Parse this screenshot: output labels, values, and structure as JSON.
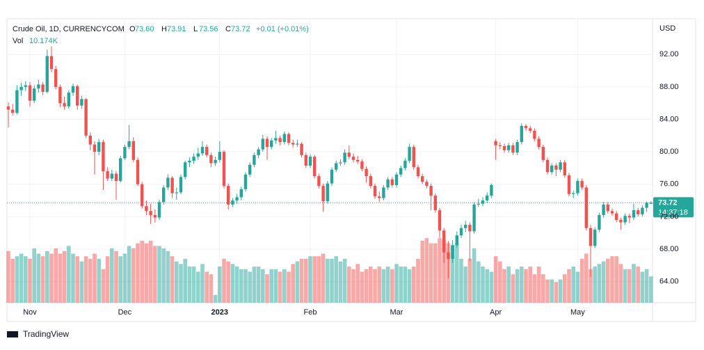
{
  "chart_data": {
    "type": "candlestick",
    "instrument": "Crude Oil, 1D, CURRENCYCOM",
    "currency": "USD",
    "ohlc_letters": [
      "O",
      "H",
      "L",
      "C"
    ],
    "ohlc_labels": [
      "73.60",
      "73.91",
      "73.56",
      "73.72"
    ],
    "change_label": "+0.01 (+0.01%)",
    "volume_title": "Vol",
    "volume_label": "10.174K",
    "last_price_label": "73.72",
    "countdown": "14:37:18",
    "brand": "TradingView",
    "up_color": "#26a69a",
    "down_color": "#ef5350",
    "ylim": [
      61.4,
      96.4
    ],
    "yticks": [
      {
        "value": 64,
        "label": "64.00"
      },
      {
        "value": 68,
        "label": "68.00"
      },
      {
        "value": 72,
        "label": "72.00"
      },
      {
        "value": 76,
        "label": "76.00"
      },
      {
        "value": 80,
        "label": "80.00"
      },
      {
        "value": 84,
        "label": "84.00"
      },
      {
        "value": 88,
        "label": "88.00"
      },
      {
        "value": 92,
        "label": "92.00"
      }
    ],
    "volume_lim": [
      0,
      31
    ],
    "grid": true,
    "categories": [
      null,
      null,
      null,
      null,
      null,
      "Nov",
      null,
      null,
      null,
      null,
      null,
      null,
      null,
      null,
      null,
      null,
      null,
      null,
      null,
      null,
      null,
      null,
      null,
      null,
      null,
      null,
      null,
      "Dec",
      null,
      null,
      null,
      null,
      null,
      null,
      null,
      null,
      null,
      null,
      null,
      null,
      null,
      null,
      null,
      null,
      null,
      null,
      null,
      null,
      null,
      "2023",
      null,
      null,
      null,
      null,
      null,
      null,
      null,
      null,
      null,
      null,
      null,
      null,
      null,
      null,
      null,
      null,
      null,
      null,
      null,
      null,
      "Feb",
      null,
      null,
      null,
      null,
      null,
      null,
      null,
      null,
      null,
      null,
      null,
      null,
      null,
      null,
      null,
      null,
      null,
      null,
      null,
      "Mar",
      null,
      null,
      null,
      null,
      null,
      null,
      null,
      null,
      null,
      null,
      null,
      null,
      null,
      null,
      null,
      null,
      null,
      null,
      null,
      null,
      null,
      null,
      "Apr",
      null,
      null,
      null,
      null,
      null,
      null,
      null,
      null,
      null,
      null,
      null,
      null,
      null,
      null,
      null,
      null,
      null,
      null,
      "May",
      null,
      null,
      null,
      null,
      null,
      null,
      null,
      null,
      null,
      null,
      null,
      null,
      null,
      null,
      null,
      null,
      null
    ],
    "candles": [
      [
        85.6,
        86.1,
        83.0,
        85.2
      ],
      [
        85.2,
        85.9,
        84.5,
        84.8
      ],
      [
        84.8,
        88.2,
        84.6,
        87.6
      ],
      [
        87.6,
        88.5,
        86.9,
        88.0
      ],
      [
        88.0,
        88.7,
        87.5,
        88.2
      ],
      [
        88.2,
        88.6,
        85.6,
        86.3
      ],
      [
        86.3,
        88.2,
        86.0,
        87.8
      ],
      [
        87.8,
        88.9,
        87.3,
        88.3
      ],
      [
        88.3,
        88.6,
        87.0,
        87.4
      ],
      [
        87.4,
        92.6,
        87.2,
        91.8
      ],
      [
        91.8,
        93.0,
        89.8,
        90.2
      ],
      [
        90.2,
        90.6,
        87.7,
        88.0
      ],
      [
        88.0,
        88.3,
        85.5,
        86.0
      ],
      [
        86.0,
        86.8,
        85.2,
        85.6
      ],
      [
        85.6,
        87.6,
        85.3,
        87.3
      ],
      [
        87.3,
        88.4,
        86.9,
        88.1
      ],
      [
        88.1,
        88.3,
        85.2,
        85.7
      ],
      [
        85.7,
        86.9,
        85.3,
        86.5
      ],
      [
        86.5,
        86.6,
        81.7,
        82.0
      ],
      [
        82.0,
        82.4,
        80.2,
        80.9
      ],
      [
        80.9,
        81.3,
        77.2,
        80.0
      ],
      [
        80.0,
        81.6,
        79.6,
        81.2
      ],
      [
        81.2,
        81.5,
        75.3,
        77.6
      ],
      [
        77.6,
        78.1,
        76.4,
        76.7
      ],
      [
        76.7,
        77.8,
        76.4,
        77.3
      ],
      [
        77.3,
        77.6,
        74.1,
        76.4
      ],
      [
        76.4,
        79.5,
        76.2,
        79.2
      ],
      [
        79.2,
        80.9,
        79.0,
        80.6
      ],
      [
        80.6,
        83.3,
        80.3,
        81.3
      ],
      [
        81.3,
        81.8,
        78.7,
        79.0
      ],
      [
        79.0,
        79.3,
        75.8,
        76.0
      ],
      [
        76.0,
        76.3,
        73.0,
        73.3
      ],
      [
        73.3,
        74.0,
        72.2,
        72.7
      ],
      [
        72.7,
        73.6,
        71.1,
        72.2
      ],
      [
        72.2,
        72.9,
        71.3,
        71.9
      ],
      [
        71.9,
        74.1,
        71.6,
        73.8
      ],
      [
        73.8,
        75.9,
        73.5,
        75.6
      ],
      [
        75.6,
        77.2,
        75.3,
        76.8
      ],
      [
        76.8,
        77.0,
        74.3,
        74.9
      ],
      [
        74.9,
        75.6,
        74.1,
        75.0
      ],
      [
        75.0,
        77.2,
        74.8,
        76.9
      ],
      [
        76.9,
        78.9,
        76.6,
        78.7
      ],
      [
        78.7,
        79.3,
        78.1,
        78.9
      ],
      [
        78.9,
        79.8,
        78.5,
        79.4
      ],
      [
        79.4,
        80.5,
        79.0,
        79.8
      ],
      [
        79.8,
        81.3,
        79.5,
        80.6
      ],
      [
        80.6,
        80.9,
        79.3,
        79.6
      ],
      [
        79.6,
        79.9,
        78.1,
        78.6
      ],
      [
        78.6,
        79.4,
        78.3,
        79.0
      ],
      [
        79.0,
        81.3,
        78.7,
        80.0
      ],
      [
        80.0,
        80.2,
        75.5,
        75.8
      ],
      [
        75.8,
        76.1,
        72.9,
        73.5
      ],
      [
        73.5,
        74.3,
        73.2,
        74.0
      ],
      [
        74.0,
        74.8,
        73.6,
        74.4
      ],
      [
        74.4,
        75.7,
        74.0,
        75.4
      ],
      [
        75.4,
        77.5,
        75.1,
        77.2
      ],
      [
        77.2,
        78.7,
        76.9,
        78.4
      ],
      [
        78.4,
        79.9,
        78.1,
        79.6
      ],
      [
        79.6,
        80.6,
        79.2,
        80.3
      ],
      [
        80.3,
        82.1,
        80.0,
        81.6
      ],
      [
        81.6,
        81.9,
        79.0,
        80.6
      ],
      [
        80.6,
        81.7,
        80.3,
        81.4
      ],
      [
        81.4,
        82.6,
        81.0,
        81.7
      ],
      [
        81.7,
        82.0,
        80.8,
        81.2
      ],
      [
        81.2,
        82.5,
        80.9,
        82.2
      ],
      [
        82.2,
        82.4,
        80.8,
        81.1
      ],
      [
        81.1,
        81.5,
        80.5,
        80.9
      ],
      [
        80.9,
        81.5,
        80.6,
        81.0
      ],
      [
        81.0,
        81.2,
        79.3,
        79.6
      ],
      [
        79.6,
        79.9,
        78.0,
        78.3
      ],
      [
        78.3,
        79.7,
        78.0,
        79.4
      ],
      [
        79.4,
        79.6,
        76.7,
        77.0
      ],
      [
        77.0,
        77.3,
        75.5,
        75.8
      ],
      [
        75.8,
        76.1,
        72.6,
        73.9
      ],
      [
        73.9,
        76.4,
        73.6,
        76.1
      ],
      [
        76.1,
        78.1,
        75.8,
        77.8
      ],
      [
        77.8,
        78.9,
        77.5,
        78.6
      ],
      [
        78.6,
        79.1,
        78.3,
        78.7
      ],
      [
        78.7,
        80.3,
        78.4,
        79.9
      ],
      [
        79.9,
        80.8,
        79.1,
        79.4
      ],
      [
        79.4,
        79.8,
        78.7,
        79.0
      ],
      [
        79.0,
        79.5,
        78.5,
        78.8
      ],
      [
        78.8,
        79.1,
        77.6,
        77.9
      ],
      [
        77.9,
        78.2,
        76.2,
        77.0
      ],
      [
        77.0,
        77.3,
        75.5,
        75.8
      ],
      [
        75.8,
        76.1,
        74.2,
        74.5
      ],
      [
        74.5,
        75.1,
        73.8,
        74.3
      ],
      [
        74.3,
        75.9,
        74.0,
        75.6
      ],
      [
        75.6,
        76.9,
        75.3,
        76.6
      ],
      [
        76.6,
        76.9,
        75.6,
        75.9
      ],
      [
        75.9,
        77.5,
        75.6,
        77.2
      ],
      [
        77.2,
        78.3,
        76.9,
        78.0
      ],
      [
        78.0,
        79.2,
        77.7,
        78.9
      ],
      [
        78.9,
        81.0,
        78.6,
        80.6
      ],
      [
        80.6,
        80.9,
        77.8,
        78.1
      ],
      [
        78.1,
        78.4,
        76.7,
        77.0
      ],
      [
        77.0,
        77.3,
        76.0,
        76.3
      ],
      [
        76.3,
        76.6,
        75.5,
        75.8
      ],
      [
        75.8,
        76.1,
        72.8,
        74.6
      ],
      [
        74.6,
        74.9,
        72.5,
        72.8
      ],
      [
        72.8,
        73.1,
        69.4,
        70.3
      ],
      [
        70.3,
        70.6,
        66.3,
        67.6
      ],
      [
        67.6,
        69.0,
        64.4,
        66.8
      ],
      [
        66.8,
        69.1,
        66.3,
        68.5
      ],
      [
        68.5,
        70.2,
        68.2,
        69.7
      ],
      [
        69.7,
        71.0,
        69.4,
        70.6
      ],
      [
        70.6,
        71.5,
        70.1,
        71.0
      ],
      [
        71.0,
        71.3,
        66.5,
        70.2
      ],
      [
        70.2,
        73.8,
        69.9,
        73.5
      ],
      [
        73.5,
        74.2,
        73.2,
        73.6
      ],
      [
        73.6,
        74.4,
        73.3,
        74.0
      ],
      [
        74.0,
        75.0,
        73.7,
        74.6
      ],
      [
        74.6,
        76.1,
        74.3,
        75.9
      ],
      [
        81.3,
        81.6,
        79.0,
        80.8
      ],
      [
        80.8,
        81.2,
        80.3,
        80.7
      ],
      [
        80.7,
        81.0,
        79.9,
        80.2
      ],
      [
        80.2,
        81.1,
        79.9,
        80.8
      ],
      [
        80.8,
        81.1,
        79.6,
        79.9
      ],
      [
        79.9,
        81.5,
        79.6,
        81.2
      ],
      [
        81.2,
        83.5,
        80.9,
        83.2
      ],
      [
        83.2,
        83.4,
        82.6,
        82.9
      ],
      [
        82.9,
        83.2,
        82.3,
        82.6
      ],
      [
        82.6,
        82.9,
        81.3,
        81.6
      ],
      [
        81.6,
        81.9,
        80.3,
        80.6
      ],
      [
        80.6,
        80.9,
        78.7,
        79.0
      ],
      [
        79.0,
        79.3,
        77.2,
        77.5
      ],
      [
        77.5,
        78.6,
        77.2,
        78.3
      ],
      [
        78.3,
        78.6,
        77.0,
        77.8
      ],
      [
        77.8,
        79.0,
        77.5,
        78.7
      ],
      [
        78.7,
        79.0,
        76.8,
        77.1
      ],
      [
        77.1,
        77.4,
        74.5,
        74.8
      ],
      [
        74.8,
        75.2,
        74.3,
        74.9
      ],
      [
        74.9,
        76.7,
        74.6,
        76.4
      ],
      [
        76.4,
        76.7,
        75.3,
        75.6
      ],
      [
        75.6,
        75.9,
        70.3,
        70.6
      ],
      [
        70.6,
        71.0,
        64.6,
        68.4
      ],
      [
        68.4,
        70.7,
        68.1,
        70.4
      ],
      [
        70.4,
        72.5,
        70.1,
        72.2
      ],
      [
        72.2,
        73.8,
        71.9,
        73.5
      ],
      [
        73.5,
        73.8,
        72.4,
        72.7
      ],
      [
        72.7,
        73.0,
        72.1,
        72.4
      ],
      [
        72.4,
        72.7,
        71.3,
        71.6
      ],
      [
        71.6,
        71.9,
        70.4,
        71.3
      ],
      [
        71.3,
        72.4,
        71.0,
        72.1
      ],
      [
        72.1,
        72.4,
        71.2,
        71.9
      ],
      [
        71.9,
        73.6,
        71.6,
        72.8
      ],
      [
        72.8,
        73.1,
        72.0,
        72.3
      ],
      [
        72.3,
        73.4,
        72.0,
        73.1
      ],
      [
        73.1,
        73.9,
        72.6,
        73.71
      ],
      [
        73.6,
        73.91,
        73.56,
        73.72
      ]
    ],
    "volumes": [
      20,
      17,
      18,
      19,
      18,
      17,
      21,
      19,
      18,
      20,
      19,
      21,
      19,
      20,
      22,
      19,
      18,
      16,
      18,
      17,
      19,
      17,
      13,
      18,
      21,
      20,
      18,
      19,
      22,
      21,
      23,
      24,
      23,
      24,
      22,
      22,
      21,
      20,
      18,
      16,
      15,
      17,
      14,
      14,
      12,
      15,
      12,
      11,
      3,
      14,
      17,
      16,
      15,
      14,
      13,
      13,
      12,
      14,
      14,
      13,
      11,
      13,
      13,
      12,
      13,
      12,
      15,
      16,
      17,
      17,
      18,
      18,
      18,
      19,
      17,
      17,
      18,
      16,
      17,
      14,
      13,
      15,
      12,
      13,
      14,
      13,
      14,
      13,
      14,
      13,
      15,
      14,
      14,
      13,
      14,
      17,
      24,
      25,
      23,
      23,
      25,
      24,
      23,
      22,
      23,
      17,
      14,
      17,
      21,
      16,
      14,
      13,
      12,
      18,
      16,
      13,
      14,
      11,
      13,
      14,
      13,
      14,
      11,
      14,
      11,
      9,
      9,
      8,
      9,
      11,
      13,
      14,
      12,
      17,
      19,
      13,
      14,
      15,
      16,
      17,
      18,
      18,
      15,
      13,
      13,
      15,
      14,
      12,
      13,
      10.174
    ]
  }
}
